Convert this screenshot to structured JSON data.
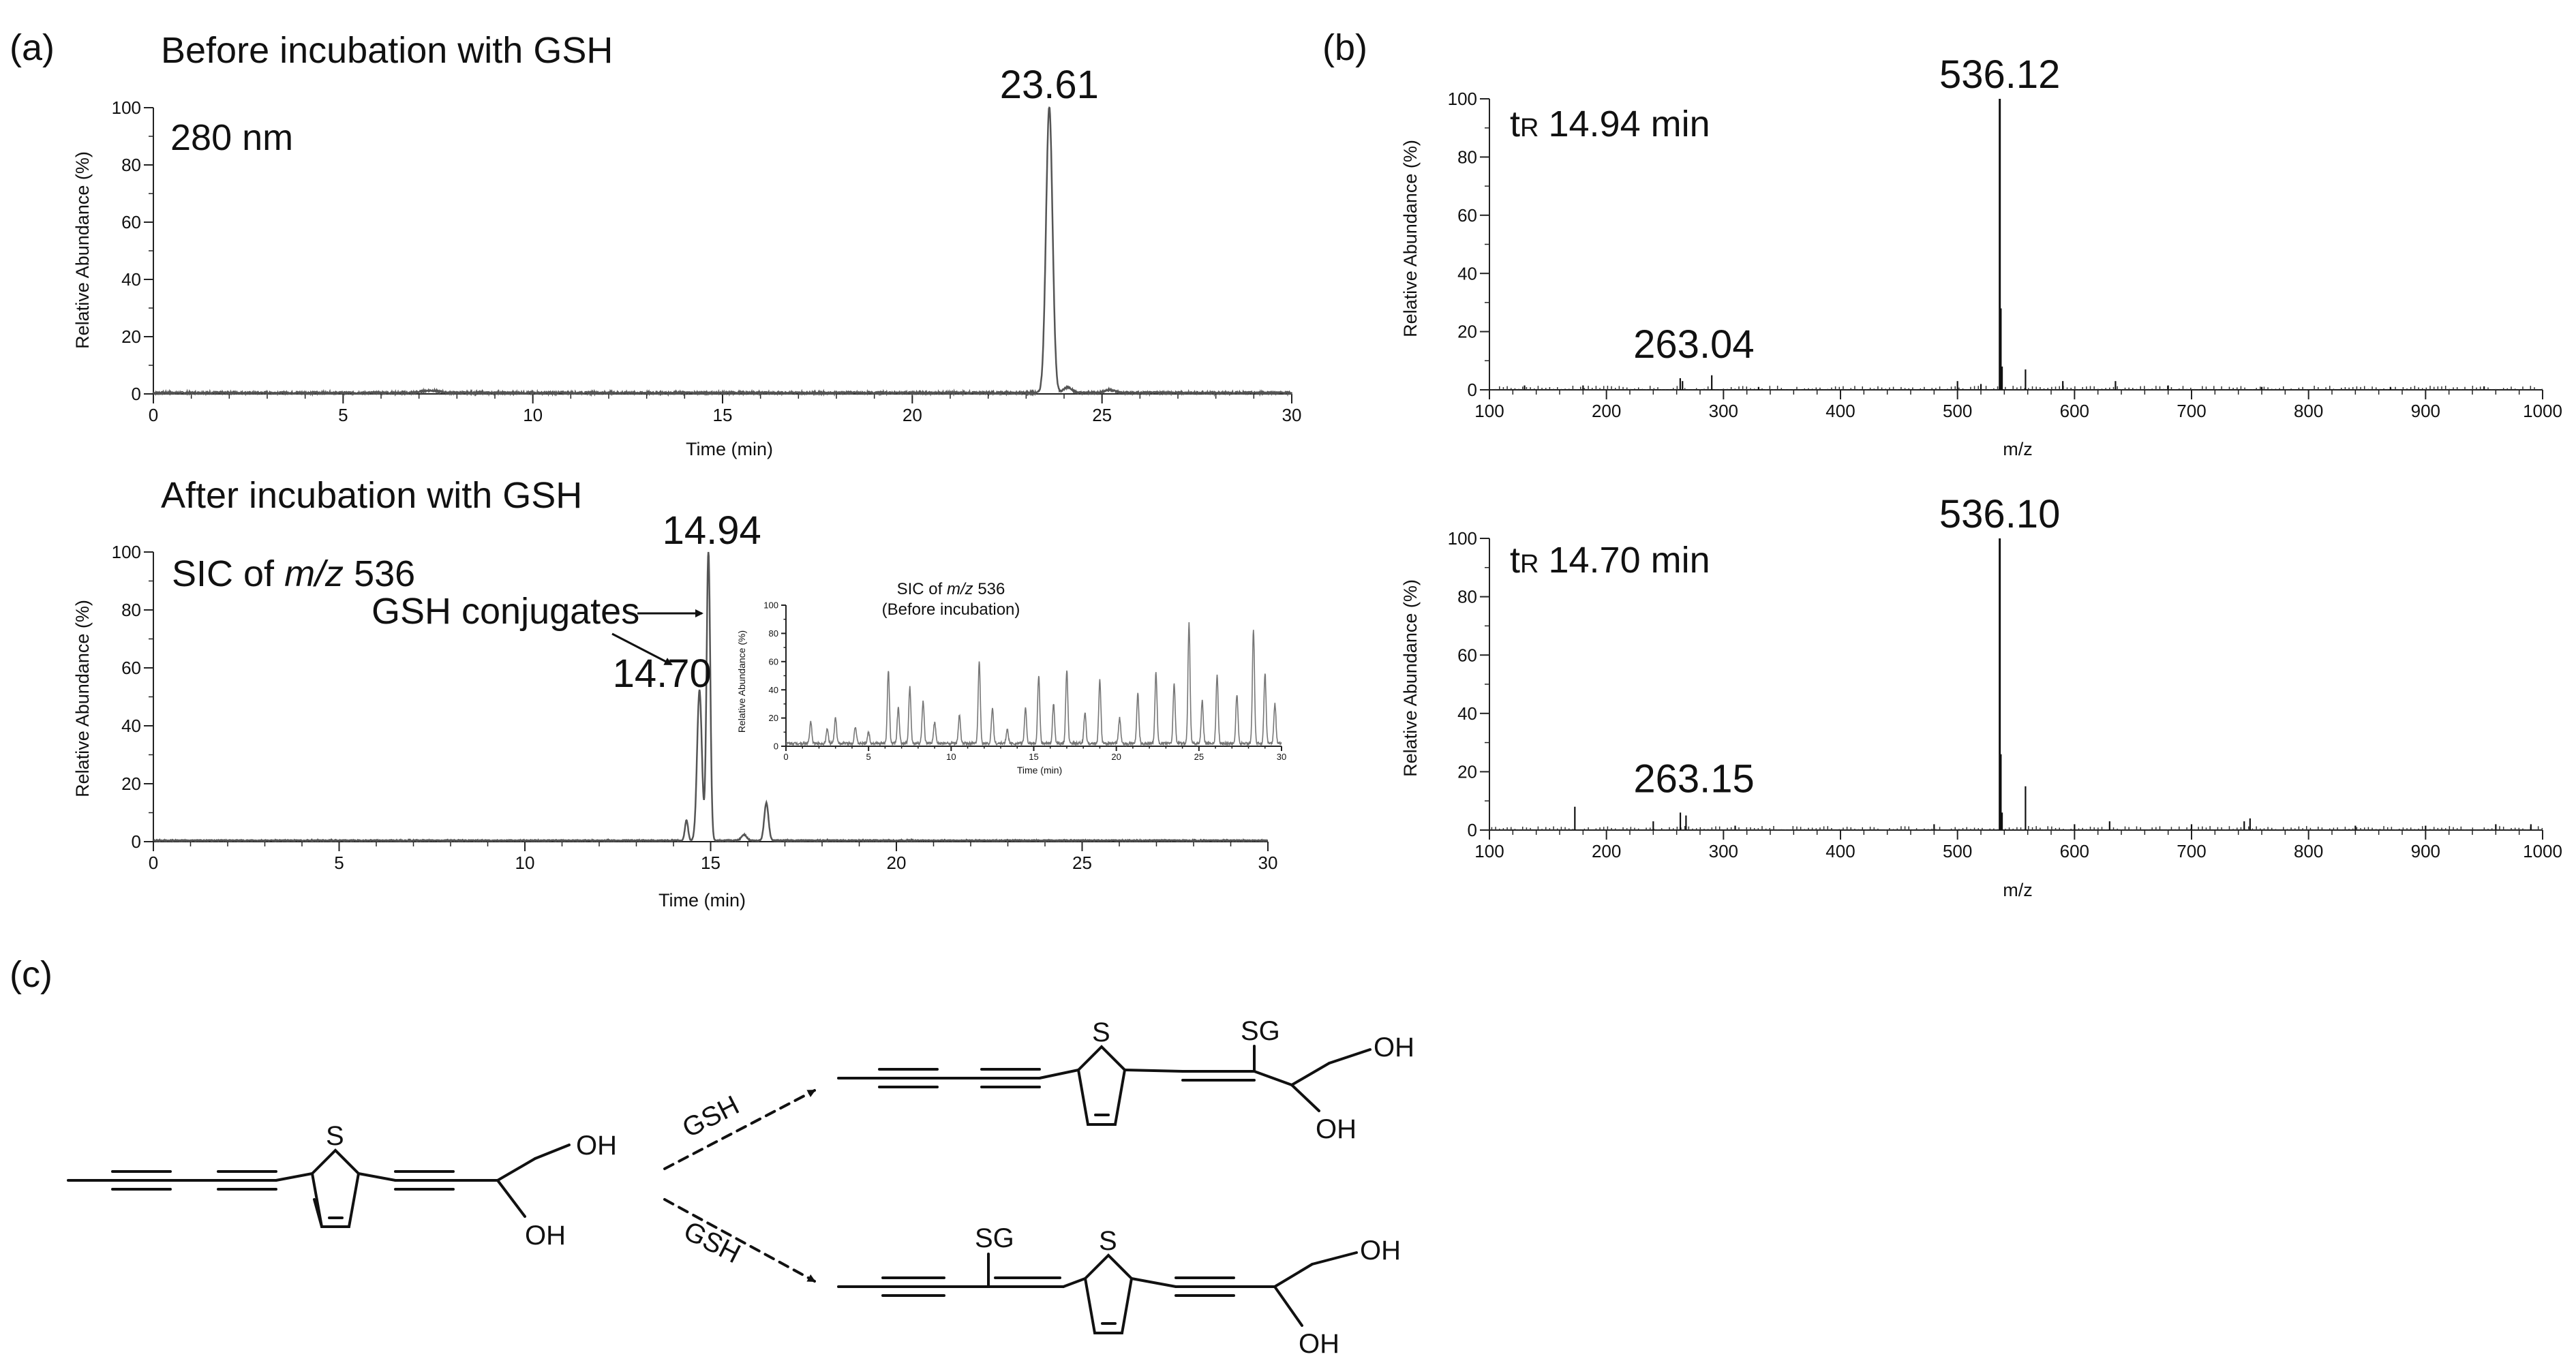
{
  "panel_labels": {
    "a": "(a)",
    "b": "(b)",
    "c": "(c)"
  },
  "chart_data": [
    {
      "id": "a-top",
      "type": "line",
      "title": "Before incubation with GSH",
      "subtitle": "280 nm",
      "xlabel": "Time (min)",
      "ylabel": "Relative Abundance (%)",
      "xlim": [
        0,
        30
      ],
      "ylim": [
        0,
        100
      ],
      "xticks": [
        0,
        5,
        10,
        15,
        20,
        25,
        30
      ],
      "yticks": [
        0,
        20,
        40,
        60,
        80,
        100
      ],
      "series": [
        {
          "peaks": [
            {
              "x": 23.61,
              "y": 100,
              "w": 0.12
            },
            {
              "x": 24.1,
              "y": 2,
              "w": 0.15
            },
            {
              "x": 25.2,
              "y": 1,
              "w": 0.2
            },
            {
              "x": 7.3,
              "y": 0.8,
              "w": 0.3
            }
          ],
          "noise": 0.6
        }
      ],
      "annotations": [
        {
          "text": "23.61",
          "x": 23.61,
          "y": 100
        }
      ]
    },
    {
      "id": "a-bottom",
      "type": "line",
      "title": "After incubation with GSH",
      "subtitle_prefix": "SIC of ",
      "subtitle_mz": "m/z",
      "subtitle_suffix": " 536",
      "xlabel": "Time (min)",
      "ylabel": "Relative Abundance (%)",
      "xlim": [
        0,
        30
      ],
      "ylim": [
        0,
        100
      ],
      "xticks": [
        0,
        5,
        10,
        15,
        20,
        25,
        30
      ],
      "yticks": [
        0,
        20,
        40,
        60,
        80,
        100
      ],
      "series": [
        {
          "peaks": [
            {
              "x": 14.94,
              "y": 100,
              "w": 0.07
            },
            {
              "x": 14.7,
              "y": 52,
              "w": 0.09
            },
            {
              "x": 14.35,
              "y": 7,
              "w": 0.06
            },
            {
              "x": 16.5,
              "y": 13,
              "w": 0.08
            },
            {
              "x": 15.9,
              "y": 2,
              "w": 0.1
            }
          ],
          "noise": 0.3
        }
      ],
      "annotations": [
        {
          "text": "14.94",
          "x": 14.94,
          "y": 100
        },
        {
          "text": "14.70",
          "x": 14.7,
          "y": 52
        },
        {
          "text": "GSH conjugates",
          "x": 14.8,
          "y": 80
        }
      ],
      "inset": {
        "title_prefix": "SIC of ",
        "title_mz": "m/z",
        "title_suffix": " 536",
        "title_line2": "(Before incubation)",
        "xlabel": "Time (min)",
        "ylabel": "Relative Abundance (%)",
        "xlim": [
          0,
          30
        ],
        "ylim": [
          0,
          100
        ],
        "xticks": [
          0,
          5,
          10,
          15,
          20,
          25,
          30
        ],
        "yticks": [
          0,
          20,
          40,
          60,
          80,
          100
        ],
        "peaks": [
          {
            "x": 1.5,
            "y": 15
          },
          {
            "x": 2.5,
            "y": 10
          },
          {
            "x": 3.0,
            "y": 18
          },
          {
            "x": 4.2,
            "y": 12
          },
          {
            "x": 5.0,
            "y": 8
          },
          {
            "x": 6.2,
            "y": 52
          },
          {
            "x": 6.8,
            "y": 25
          },
          {
            "x": 7.5,
            "y": 40
          },
          {
            "x": 8.3,
            "y": 30
          },
          {
            "x": 9.0,
            "y": 15
          },
          {
            "x": 10.5,
            "y": 20
          },
          {
            "x": 11.7,
            "y": 58
          },
          {
            "x": 12.5,
            "y": 25
          },
          {
            "x": 13.4,
            "y": 10
          },
          {
            "x": 14.5,
            "y": 25
          },
          {
            "x": 15.3,
            "y": 48
          },
          {
            "x": 16.2,
            "y": 28
          },
          {
            "x": 17.0,
            "y": 52
          },
          {
            "x": 18.1,
            "y": 22
          },
          {
            "x": 19.0,
            "y": 45
          },
          {
            "x": 20.2,
            "y": 18
          },
          {
            "x": 21.3,
            "y": 35
          },
          {
            "x": 22.4,
            "y": 50
          },
          {
            "x": 23.5,
            "y": 42
          },
          {
            "x": 24.4,
            "y": 85
          },
          {
            "x": 25.2,
            "y": 30
          },
          {
            "x": 26.1,
            "y": 48
          },
          {
            "x": 27.3,
            "y": 35
          },
          {
            "x": 28.3,
            "y": 80
          },
          {
            "x": 29.0,
            "y": 50
          },
          {
            "x": 29.6,
            "y": 28
          }
        ]
      }
    },
    {
      "id": "b-top",
      "type": "bar",
      "title": "14.94 min",
      "title_prefix": "t",
      "title_sub": "R",
      "xlabel": "m/z",
      "ylabel": "Relative Abundance (%)",
      "xlim": [
        100,
        1000
      ],
      "ylim": [
        0,
        100
      ],
      "xticks": [
        100,
        200,
        300,
        400,
        500,
        600,
        700,
        800,
        900,
        1000
      ],
      "yticks": [
        0,
        20,
        40,
        60,
        80,
        100
      ],
      "peaks": [
        {
          "x": 536.12,
          "y": 100
        },
        {
          "x": 537.1,
          "y": 28
        },
        {
          "x": 538.1,
          "y": 8
        },
        {
          "x": 558.1,
          "y": 7
        },
        {
          "x": 263.04,
          "y": 4
        },
        {
          "x": 290,
          "y": 5
        },
        {
          "x": 265,
          "y": 3
        },
        {
          "x": 500,
          "y": 3
        },
        {
          "x": 590,
          "y": 3
        },
        {
          "x": 635,
          "y": 3
        },
        {
          "x": 520,
          "y": 2
        },
        {
          "x": 130,
          "y": 1.5
        },
        {
          "x": 180,
          "y": 1.5
        },
        {
          "x": 330,
          "y": 1
        },
        {
          "x": 680,
          "y": 1.5
        },
        {
          "x": 760,
          "y": 1
        },
        {
          "x": 870,
          "y": 1
        },
        {
          "x": 950,
          "y": 1.2
        }
      ],
      "annotations": [
        {
          "text": "536.12",
          "x": 536.12,
          "y": 100
        },
        {
          "text": "263.04",
          "x": 263.04,
          "y": 4
        }
      ]
    },
    {
      "id": "b-bottom",
      "type": "bar",
      "title": "14.70 min",
      "title_prefix": "t",
      "title_sub": "R",
      "xlabel": "m/z",
      "ylabel": "Relative Abundance (%)",
      "xlim": [
        100,
        1000
      ],
      "ylim": [
        0,
        100
      ],
      "xticks": [
        100,
        200,
        300,
        400,
        500,
        600,
        700,
        800,
        900,
        1000
      ],
      "yticks": [
        0,
        20,
        40,
        60,
        80,
        100
      ],
      "peaks": [
        {
          "x": 536.1,
          "y": 100
        },
        {
          "x": 537.1,
          "y": 26
        },
        {
          "x": 558.1,
          "y": 15
        },
        {
          "x": 538.1,
          "y": 6
        },
        {
          "x": 263.15,
          "y": 6
        },
        {
          "x": 173,
          "y": 8
        },
        {
          "x": 268,
          "y": 5
        },
        {
          "x": 240,
          "y": 3
        },
        {
          "x": 630,
          "y": 3
        },
        {
          "x": 750,
          "y": 4
        },
        {
          "x": 745,
          "y": 3
        },
        {
          "x": 700,
          "y": 2
        },
        {
          "x": 600,
          "y": 2
        },
        {
          "x": 480,
          "y": 2
        },
        {
          "x": 840,
          "y": 1.5
        },
        {
          "x": 900,
          "y": 1.5
        },
        {
          "x": 960,
          "y": 2
        },
        {
          "x": 990,
          "y": 2
        },
        {
          "x": 310,
          "y": 1.5
        }
      ],
      "annotations": [
        {
          "text": "536.10",
          "x": 536.1,
          "y": 100
        },
        {
          "text": "263.15",
          "x": 263.15,
          "y": 6
        }
      ]
    }
  ],
  "scheme": {
    "reagent_top": "GSH",
    "reagent_bottom": "GSH",
    "oh": "OH",
    "sg": "SG",
    "s": "S"
  }
}
